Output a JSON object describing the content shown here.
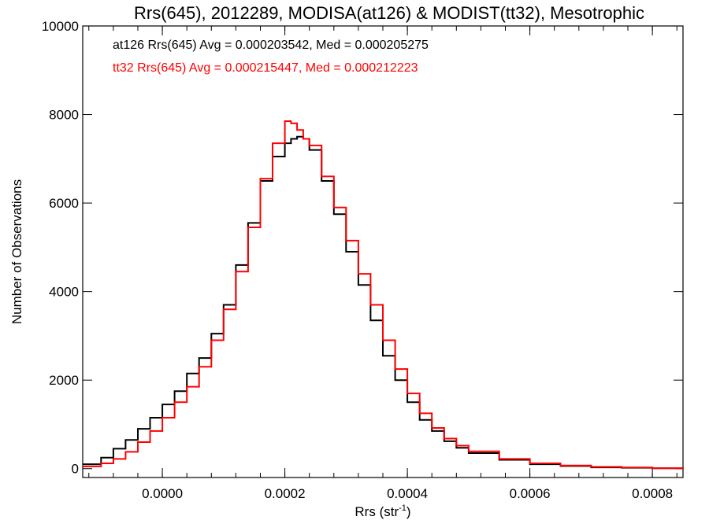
{
  "chart_data": {
    "type": "line",
    "title": "Rrs(645), 2012289, MODISA(at126) & MODIST(tt32), Mesotrophic",
    "xlabel_main": "Rrs (str",
    "xlabel_sup": "-1",
    "xlabel_end": ")",
    "ylabel": "Number of Observations",
    "xlim": [
      -0.00013,
      0.00085
    ],
    "ylim": [
      -200,
      10000
    ],
    "xticks": [
      0.0,
      0.0002,
      0.0004,
      0.0006,
      0.0008
    ],
    "xtick_labels": [
      "0.0000",
      "0.0002",
      "0.0004",
      "0.0006",
      "0.0008"
    ],
    "yticks": [
      0,
      2000,
      4000,
      6000,
      8000,
      10000
    ],
    "ytick_labels": [
      "0",
      "2000",
      "4000",
      "6000",
      "8000",
      "10000"
    ],
    "annotations": [
      "at126 Rrs(645) Avg = 0.000203542, Med = 0.000205275",
      "tt32 Rrs(645) Avg = 0.000215447, Med = 0.000212223"
    ],
    "grid": false,
    "series": [
      {
        "color": "#000000",
        "x": [
          -0.00013,
          -0.0001,
          -8e-05,
          -6e-05,
          -4e-05,
          -2e-05,
          0.0,
          2e-05,
          4e-05,
          6e-05,
          8e-05,
          0.0001,
          0.00012,
          0.00014,
          0.00016,
          0.00018,
          0.0002,
          0.00021,
          0.00022,
          0.00023,
          0.00024,
          0.00026,
          0.00028,
          0.0003,
          0.00032,
          0.00034,
          0.00036,
          0.00038,
          0.0004,
          0.00042,
          0.00044,
          0.00046,
          0.00048,
          0.0005,
          0.00055,
          0.0006,
          0.00065,
          0.0007,
          0.00075,
          0.0008,
          0.00085
        ],
        "y": [
          100,
          250,
          450,
          650,
          900,
          1150,
          1450,
          1750,
          2150,
          2500,
          3050,
          3700,
          4600,
          5550,
          6500,
          7050,
          7350,
          7450,
          7500,
          7450,
          7200,
          6500,
          5750,
          4900,
          4150,
          3350,
          2550,
          2000,
          1500,
          1100,
          850,
          620,
          470,
          350,
          200,
          100,
          60,
          30,
          20,
          10,
          5
        ]
      },
      {
        "color": "#ff0000",
        "x": [
          -0.00013,
          -0.0001,
          -8e-05,
          -6e-05,
          -4e-05,
          -2e-05,
          0.0,
          2e-05,
          4e-05,
          6e-05,
          8e-05,
          0.0001,
          0.00012,
          0.00014,
          0.00016,
          0.00018,
          0.0002,
          0.00021,
          0.00022,
          0.00023,
          0.00024,
          0.00026,
          0.00028,
          0.0003,
          0.00032,
          0.00034,
          0.00036,
          0.00038,
          0.0004,
          0.00042,
          0.00044,
          0.00046,
          0.00048,
          0.0005,
          0.00055,
          0.0006,
          0.00065,
          0.0007,
          0.00075,
          0.0008,
          0.00085
        ],
        "y": [
          50,
          120,
          220,
          380,
          600,
          850,
          1150,
          1500,
          1850,
          2300,
          2900,
          3600,
          4450,
          5450,
          6550,
          7350,
          7850,
          7800,
          7650,
          7450,
          7300,
          6600,
          5900,
          5150,
          4400,
          3700,
          2900,
          2250,
          1700,
          1250,
          920,
          680,
          520,
          390,
          220,
          120,
          70,
          40,
          25,
          12,
          5
        ]
      }
    ]
  }
}
